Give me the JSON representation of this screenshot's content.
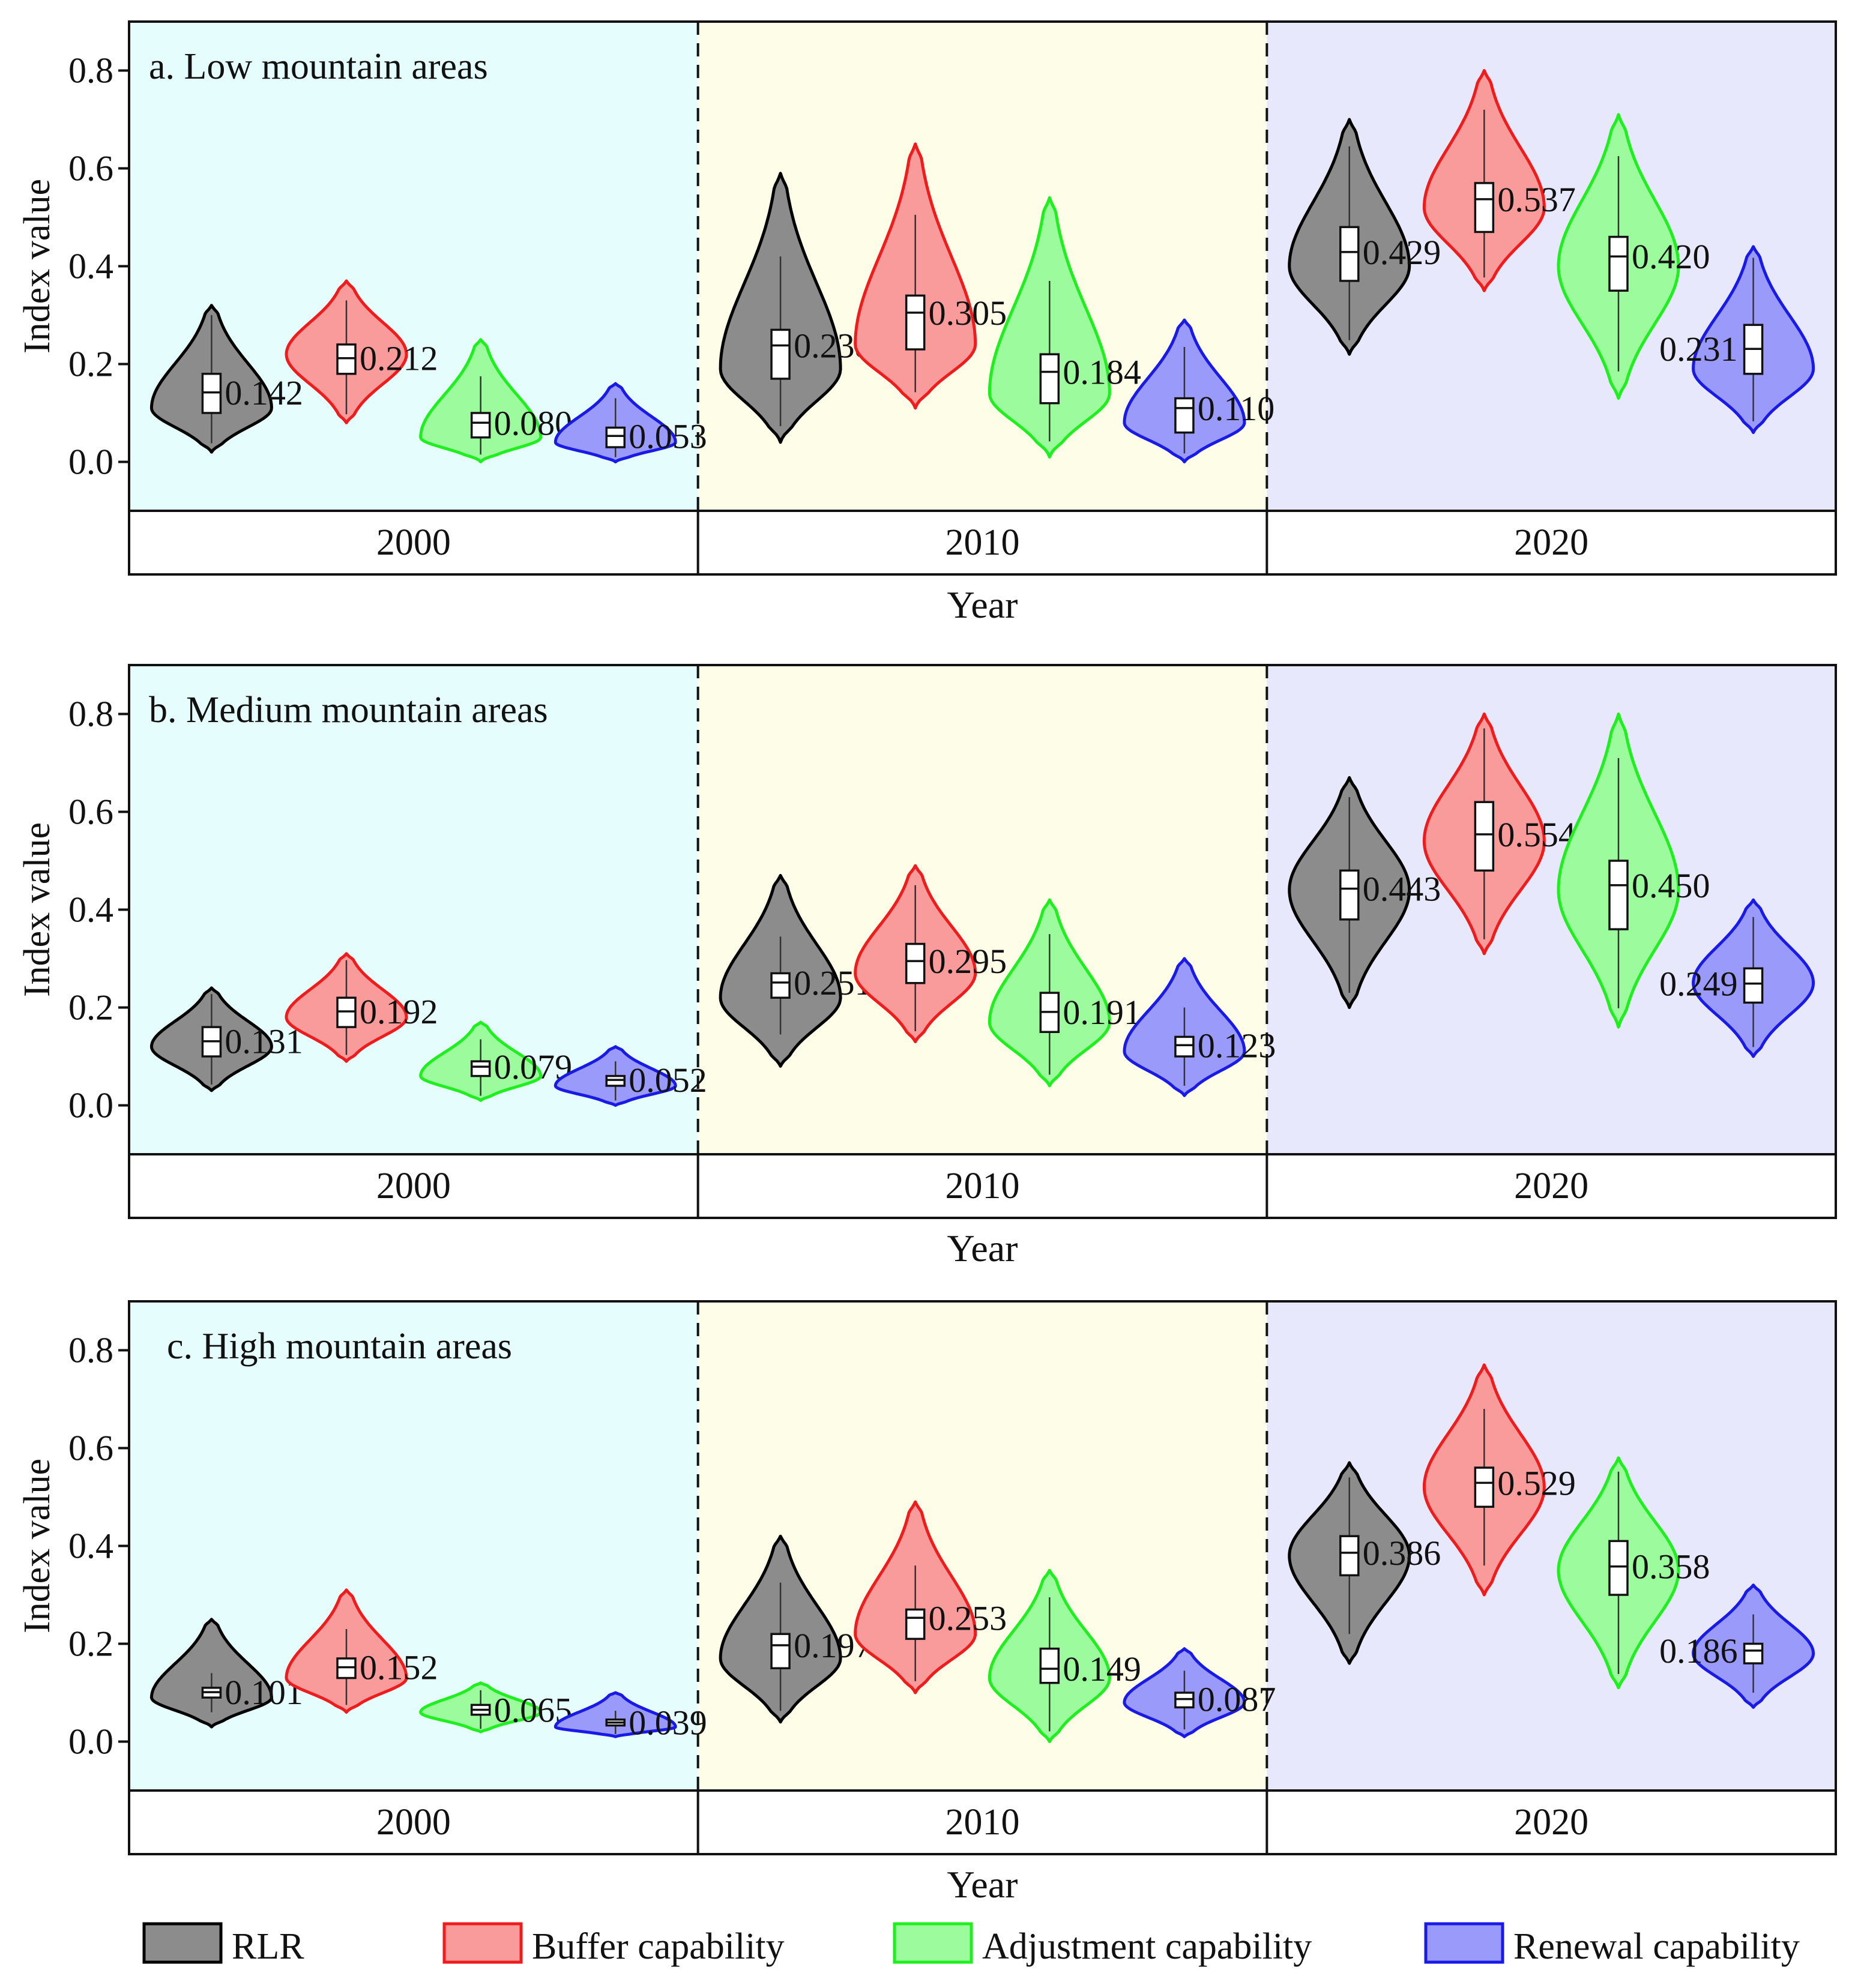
{
  "chart_data": [
    {
      "type": "violin",
      "panel_id": "a",
      "title": "a. Low mountain areas",
      "ylabel": "Index value",
      "xlabel": "Year",
      "yticks": [
        "0.0",
        "0.2",
        "0.4",
        "0.6",
        "0.8"
      ],
      "ytick_values": [
        0.0,
        0.2,
        0.4,
        0.6,
        0.8
      ],
      "ylim": [
        -0.1,
        0.9
      ],
      "years": [
        "2000",
        "2010",
        "2020"
      ],
      "groups": [
        {
          "year": "2000",
          "background": "#e6fdfd",
          "violins": [
            {
              "series": "RLR",
              "min": 0.02,
              "max": 0.32,
              "mode": 0.11,
              "q1": 0.1,
              "median": 0.142,
              "q3": 0.18,
              "label": "0.142"
            },
            {
              "series": "Buffer capability",
              "min": 0.08,
              "max": 0.37,
              "mode": 0.22,
              "q1": 0.18,
              "median": 0.212,
              "q3": 0.24,
              "label": "0.212"
            },
            {
              "series": "Adjustment capability",
              "min": 0.0,
              "max": 0.25,
              "mode": 0.05,
              "q1": 0.05,
              "median": 0.08,
              "q3": 0.1,
              "label": "0.080"
            },
            {
              "series": "Renewal capability",
              "min": 0.0,
              "max": 0.16,
              "mode": 0.04,
              "q1": 0.03,
              "median": 0.053,
              "q3": 0.07,
              "label": "0.053"
            }
          ]
        },
        {
          "year": "2010",
          "background": "#fdfde8",
          "violins": [
            {
              "series": "RLR",
              "min": 0.04,
              "max": 0.59,
              "mode": 0.19,
              "q1": 0.17,
              "median": 0.238,
              "q3": 0.27,
              "label": "0.238"
            },
            {
              "series": "Buffer capability",
              "min": 0.11,
              "max": 0.65,
              "mode": 0.24,
              "q1": 0.23,
              "median": 0.305,
              "q3": 0.34,
              "label": "0.305"
            },
            {
              "series": "Adjustment capability",
              "min": 0.01,
              "max": 0.54,
              "mode": 0.14,
              "q1": 0.12,
              "median": 0.184,
              "q3": 0.22,
              "label": "0.184"
            },
            {
              "series": "Renewal capability",
              "min": 0.0,
              "max": 0.29,
              "mode": 0.08,
              "q1": 0.06,
              "median": 0.11,
              "q3": 0.13,
              "label": "0.110"
            }
          ]
        },
        {
          "year": "2020",
          "background": "#e8e8fd",
          "violins": [
            {
              "series": "RLR",
              "min": 0.22,
              "max": 0.7,
              "mode": 0.4,
              "q1": 0.37,
              "median": 0.429,
              "q3": 0.48,
              "label": "0.429"
            },
            {
              "series": "Buffer capability",
              "min": 0.35,
              "max": 0.8,
              "mode": 0.52,
              "q1": 0.47,
              "median": 0.537,
              "q3": 0.57,
              "label": "0.537"
            },
            {
              "series": "Adjustment capability",
              "min": 0.13,
              "max": 0.71,
              "mode": 0.4,
              "q1": 0.35,
              "median": 0.42,
              "q3": 0.46,
              "label": "0.420"
            },
            {
              "series": "Renewal capability",
              "min": 0.06,
              "max": 0.44,
              "mode": 0.19,
              "q1": 0.18,
              "median": 0.231,
              "q3": 0.28,
              "label": "0.231"
            }
          ]
        }
      ]
    },
    {
      "type": "violin",
      "panel_id": "b",
      "title": "b. Medium mountain areas",
      "ylabel": "Index value",
      "xlabel": "Year",
      "yticks": [
        "0.0",
        "0.2",
        "0.4",
        "0.6",
        "0.8"
      ],
      "ytick_values": [
        0.0,
        0.2,
        0.4,
        0.6,
        0.8
      ],
      "ylim": [
        -0.1,
        0.9
      ],
      "years": [
        "2000",
        "2010",
        "2020"
      ],
      "groups": [
        {
          "year": "2000",
          "background": "#e6fdfd",
          "violins": [
            {
              "series": "RLR",
              "min": 0.03,
              "max": 0.24,
              "mode": 0.12,
              "q1": 0.1,
              "median": 0.131,
              "q3": 0.16,
              "label": "0.131"
            },
            {
              "series": "Buffer capability",
              "min": 0.09,
              "max": 0.31,
              "mode": 0.18,
              "q1": 0.16,
              "median": 0.192,
              "q3": 0.22,
              "label": "0.192"
            },
            {
              "series": "Adjustment capability",
              "min": 0.01,
              "max": 0.17,
              "mode": 0.06,
              "q1": 0.06,
              "median": 0.079,
              "q3": 0.09,
              "label": "0.079"
            },
            {
              "series": "Renewal capability",
              "min": 0.0,
              "max": 0.12,
              "mode": 0.04,
              "q1": 0.04,
              "median": 0.052,
              "q3": 0.06,
              "label": "0.052"
            }
          ]
        },
        {
          "year": "2010",
          "background": "#fdfde8",
          "violins": [
            {
              "series": "RLR",
              "min": 0.08,
              "max": 0.47,
              "mode": 0.22,
              "q1": 0.22,
              "median": 0.251,
              "q3": 0.27,
              "label": "0.251"
            },
            {
              "series": "Buffer capability",
              "min": 0.13,
              "max": 0.49,
              "mode": 0.27,
              "q1": 0.25,
              "median": 0.295,
              "q3": 0.33,
              "label": "0.295"
            },
            {
              "series": "Adjustment capability",
              "min": 0.04,
              "max": 0.42,
              "mode": 0.17,
              "q1": 0.15,
              "median": 0.191,
              "q3": 0.23,
              "label": "0.191"
            },
            {
              "series": "Renewal capability",
              "min": 0.02,
              "max": 0.3,
              "mode": 0.11,
              "q1": 0.1,
              "median": 0.123,
              "q3": 0.14,
              "label": "0.123"
            }
          ]
        },
        {
          "year": "2020",
          "background": "#e8e8fd",
          "violins": [
            {
              "series": "RLR",
              "min": 0.2,
              "max": 0.67,
              "mode": 0.44,
              "q1": 0.38,
              "median": 0.443,
              "q3": 0.48,
              "label": "0.443"
            },
            {
              "series": "Buffer capability",
              "min": 0.31,
              "max": 0.8,
              "mode": 0.54,
              "q1": 0.48,
              "median": 0.554,
              "q3": 0.62,
              "label": "0.554"
            },
            {
              "series": "Adjustment capability",
              "min": 0.16,
              "max": 0.8,
              "mode": 0.44,
              "q1": 0.36,
              "median": 0.45,
              "q3": 0.5,
              "label": "0.450"
            },
            {
              "series": "Renewal capability",
              "min": 0.1,
              "max": 0.42,
              "mode": 0.25,
              "q1": 0.21,
              "median": 0.249,
              "q3": 0.28,
              "label": "0.249"
            }
          ]
        }
      ]
    },
    {
      "type": "violin",
      "panel_id": "c",
      "title": "c. High mountain areas",
      "ylabel": "Index value",
      "xlabel": "Year",
      "yticks": [
        "0.0",
        "0.2",
        "0.4",
        "0.6",
        "0.8"
      ],
      "ytick_values": [
        0.0,
        0.2,
        0.4,
        0.6,
        0.8
      ],
      "ylim": [
        -0.1,
        0.9
      ],
      "years": [
        "2000",
        "2010",
        "2020"
      ],
      "groups": [
        {
          "year": "2000",
          "background": "#e6fdfd",
          "violins": [
            {
              "series": "RLR",
              "min": 0.03,
              "max": 0.25,
              "mode": 0.09,
              "q1": 0.09,
              "median": 0.101,
              "q3": 0.11,
              "label": "0.101"
            },
            {
              "series": "Buffer capability",
              "min": 0.06,
              "max": 0.31,
              "mode": 0.13,
              "q1": 0.13,
              "median": 0.152,
              "q3": 0.17,
              "label": "0.152"
            },
            {
              "series": "Adjustment capability",
              "min": 0.02,
              "max": 0.12,
              "mode": 0.06,
              "q1": 0.055,
              "median": 0.065,
              "q3": 0.075,
              "label": "0.065"
            },
            {
              "series": "Renewal capability",
              "min": 0.01,
              "max": 0.1,
              "mode": 0.03,
              "q1": 0.033,
              "median": 0.039,
              "q3": 0.045,
              "label": "0.039"
            }
          ]
        },
        {
          "year": "2010",
          "background": "#fdfde8",
          "violins": [
            {
              "series": "RLR",
              "min": 0.04,
              "max": 0.42,
              "mode": 0.17,
              "q1": 0.15,
              "median": 0.197,
              "q3": 0.22,
              "label": "0.197"
            },
            {
              "series": "Buffer capability",
              "min": 0.1,
              "max": 0.49,
              "mode": 0.22,
              "q1": 0.21,
              "median": 0.253,
              "q3": 0.27,
              "label": "0.253"
            },
            {
              "series": "Adjustment capability",
              "min": 0.0,
              "max": 0.35,
              "mode": 0.13,
              "q1": 0.12,
              "median": 0.149,
              "q3": 0.19,
              "label": "0.149"
            },
            {
              "series": "Renewal capability",
              "min": 0.01,
              "max": 0.19,
              "mode": 0.08,
              "q1": 0.07,
              "median": 0.087,
              "q3": 0.1,
              "label": "0.087"
            }
          ]
        },
        {
          "year": "2020",
          "background": "#e8e8fd",
          "violins": [
            {
              "series": "RLR",
              "min": 0.16,
              "max": 0.57,
              "mode": 0.38,
              "q1": 0.34,
              "median": 0.386,
              "q3": 0.42,
              "label": "0.386"
            },
            {
              "series": "Buffer capability",
              "min": 0.3,
              "max": 0.77,
              "mode": 0.52,
              "q1": 0.48,
              "median": 0.529,
              "q3": 0.56,
              "label": "0.529"
            },
            {
              "series": "Adjustment capability",
              "min": 0.11,
              "max": 0.58,
              "mode": 0.35,
              "q1": 0.3,
              "median": 0.358,
              "q3": 0.41,
              "label": "0.358"
            },
            {
              "series": "Renewal capability",
              "min": 0.07,
              "max": 0.32,
              "mode": 0.18,
              "q1": 0.16,
              "median": 0.186,
              "q3": 0.2,
              "label": "0.186"
            }
          ]
        }
      ]
    }
  ],
  "legend": {
    "position": "bottom",
    "items": [
      {
        "label": "RLR",
        "fill": "#8c8c8c",
        "stroke": "#000000"
      },
      {
        "label": "Buffer capability",
        "fill": "#fa9b9b",
        "stroke": "#ee1c1c"
      },
      {
        "label": "Adjustment capability",
        "fill": "#9cfb9c",
        "stroke": "#1fee1f"
      },
      {
        "label": "Renewal capability",
        "fill": "#9a9afa",
        "stroke": "#1a1ae6"
      }
    ]
  }
}
